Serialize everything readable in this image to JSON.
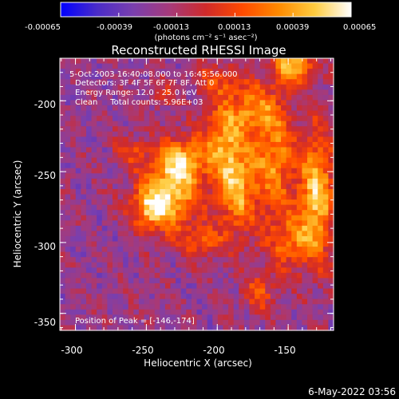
{
  "colorbar": {
    "tick_labels": [
      "-0.00065",
      "-0.00039",
      "-0.00013",
      "0.00013",
      "0.00039",
      "0.00065"
    ],
    "unit_label": "(photons cm⁻² s⁻¹ asec⁻²)",
    "stops": [
      "#0000ff",
      "#4a2cc8",
      "#7a3fae",
      "#a63a7a",
      "#cf2a2a",
      "#ff4a00",
      "#ff8a00",
      "#ffcc40",
      "#ffffff"
    ]
  },
  "chart_data": {
    "type": "heatmap",
    "title": "Reconstructed RHESSI Image",
    "xlabel": "Heliocentric X (arcsec)",
    "ylabel": "Heliocentric Y (arcsec)",
    "xlim": [
      -311,
      -118
    ],
    "ylim": [
      -362,
      -170
    ],
    "x_ticks": [
      -300,
      -250,
      -200,
      -150
    ],
    "y_ticks": [
      -200,
      -250,
      -300,
      -350
    ],
    "value_range": [
      -0.00065,
      0.00065
    ],
    "info_lines": [
      "5-Oct-2003 16:40:08.000 to 16:45:56.000",
      "Detectors: 3F 4F 5F 6F 7F 8F, Att 0",
      "Energy Range: 12.0 - 25.0 keV",
      "Clean     Total counts: 5.96E+03"
    ],
    "peak_label": "Position of Peak = [-146,-174]",
    "peak": [
      -146,
      -174
    ]
  },
  "footer_date": "6-May-2022 03:56"
}
